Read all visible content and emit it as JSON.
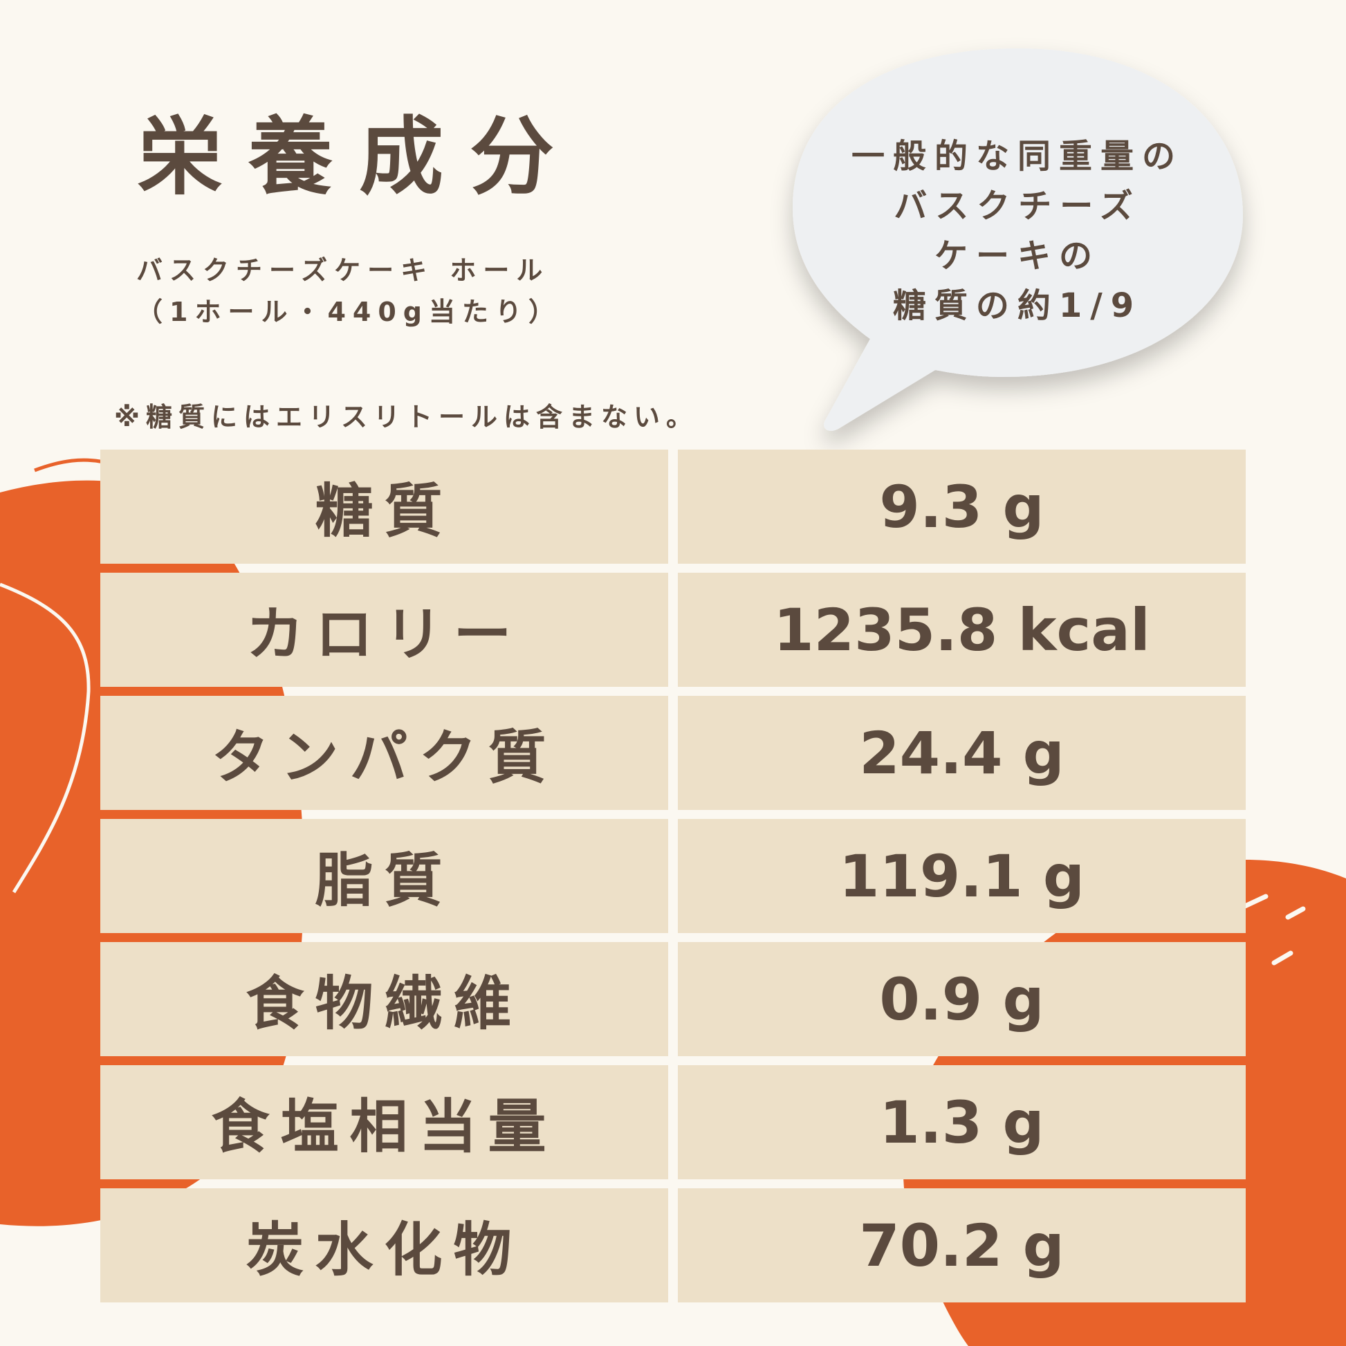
{
  "colors": {
    "background": "#FBF8F1",
    "accent": "#E8622A",
    "cell": "#EDE0C8",
    "text": "#5B4A3E",
    "bubble": "#EEF0F2"
  },
  "title": "栄養成分",
  "subtitle": [
    "バスクチーズケーキ ホール",
    "（1ホール・440g当たり）"
  ],
  "note": "※糖質にはエリスリトールは含まない。",
  "bubble": [
    "一般的な同重量の",
    "バスクチーズ",
    "ケーキの",
    "糖質の約1/9"
  ],
  "table": [
    {
      "label": "糖質",
      "value": "9.3 g"
    },
    {
      "label": "カロリー",
      "value": "1235.8 kcal"
    },
    {
      "label": "タンパク質",
      "value": "24.4 g"
    },
    {
      "label": "脂質",
      "value": "119.1 g"
    },
    {
      "label": "食物繊維",
      "value": "0.9 g"
    },
    {
      "label": "食塩相当量",
      "value": "1.3 g"
    },
    {
      "label": "炭水化物",
      "value": "70.2 g"
    }
  ]
}
